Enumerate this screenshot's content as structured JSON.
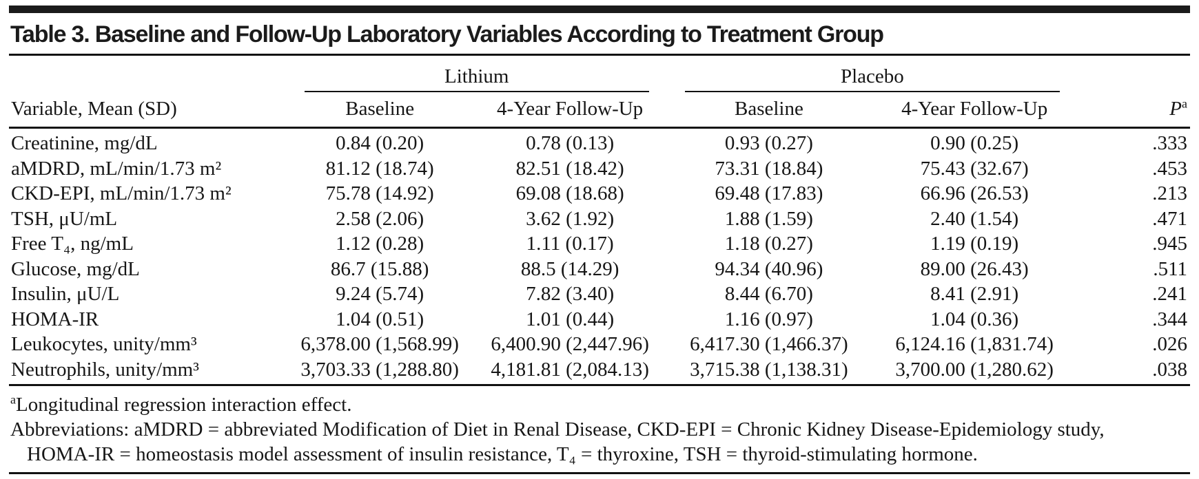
{
  "table": {
    "title": "Table 3. Baseline and Follow-Up Laboratory Variables According to Treatment Group",
    "column_groups": {
      "lithium": "Lithium",
      "placebo": "Placebo"
    },
    "columns": {
      "variable": "Variable, Mean (SD)",
      "baseline": "Baseline",
      "followup": "4-Year Follow-Up",
      "p_label": "P",
      "p_sup": "a"
    },
    "rows": [
      {
        "label": "Creatinine, mg/dL",
        "li_base": "0.84 (0.20)",
        "li_fu": "0.78 (0.13)",
        "pl_base": "0.93 (0.27)",
        "pl_fu": "0.90 (0.25)",
        "p": ".333"
      },
      {
        "label": "aMDRD, mL/min/1.73 m²",
        "li_base": "81.12 (18.74)",
        "li_fu": "82.51 (18.42)",
        "pl_base": "73.31 (18.84)",
        "pl_fu": "75.43 (32.67)",
        "p": ".453"
      },
      {
        "label": "CKD-EPI, mL/min/1.73 m²",
        "li_base": "75.78 (14.92)",
        "li_fu": "69.08 (18.68)",
        "pl_base": "69.48 (17.83)",
        "pl_fu": "66.96 (26.53)",
        "p": ".213"
      },
      {
        "label": "TSH, μU/mL",
        "li_base": "2.58 (2.06)",
        "li_fu": "3.62 (1.92)",
        "pl_base": "1.88 (1.59)",
        "pl_fu": "2.40 (1.54)",
        "p": ".471"
      },
      {
        "label": "Free T₄, ng/mL",
        "li_base": "1.12 (0.28)",
        "li_fu": "1.11 (0.17)",
        "pl_base": "1.18 (0.27)",
        "pl_fu": "1.19 (0.19)",
        "p": ".945"
      },
      {
        "label": "Glucose, mg/dL",
        "li_base": "86.7 (15.88)",
        "li_fu": "88.5 (14.29)",
        "pl_base": "94.34 (40.96)",
        "pl_fu": "89.00 (26.43)",
        "p": ".511"
      },
      {
        "label": "Insulin, μU/L",
        "li_base": "9.24 (5.74)",
        "li_fu": "7.82 (3.40)",
        "pl_base": "8.44 (6.70)",
        "pl_fu": "8.41 (2.91)",
        "p": ".241"
      },
      {
        "label": "HOMA-IR",
        "li_base": "1.04 (0.51)",
        "li_fu": "1.01 (0.44)",
        "pl_base": "1.16 (0.97)",
        "pl_fu": "1.04 (0.36)",
        "p": ".344"
      },
      {
        "label": "Leukocytes, unity/mm³",
        "li_base": "6,378.00 (1,568.99)",
        "li_fu": "6,400.90 (2,447.96)",
        "pl_base": "6,417.30 (1,466.37)",
        "pl_fu": "6,124.16 (1,831.74)",
        "p": ".026"
      },
      {
        "label": "Neutrophils, unity/mm³",
        "li_base": "3,703.33 (1,288.80)",
        "li_fu": "4,181.81 (2,084.13)",
        "pl_base": "3,715.38 (1,138.31)",
        "pl_fu": "3,700.00 (1,280.62)",
        "p": ".038"
      }
    ],
    "footnotes": [
      {
        "marker": "a",
        "text": "Longitudinal regression interaction effect."
      },
      {
        "marker": "",
        "text": "Abbreviations: aMDRD = abbreviated Modification of Diet in Renal Disease, CKD-EPI = Chronic Kidney Disease-Epidemiology study, HOMA-IR = homeostasis model assessment of insulin resistance, T₄ = thyroxine, TSH = thyroid-stimulating hormone."
      }
    ],
    "colors": {
      "text": "#161616",
      "rule": "#111111",
      "background": "#ffffff"
    }
  }
}
